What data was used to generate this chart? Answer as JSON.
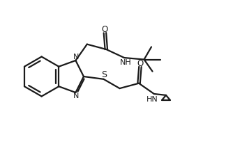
{
  "background_color": "#ffffff",
  "line_color": "#1a1a1a",
  "line_width": 1.6,
  "figsize": [
    3.34,
    2.2
  ],
  "dpi": 100,
  "xlim": [
    0.0,
    3.5
  ],
  "ylim": [
    0.0,
    2.3
  ]
}
